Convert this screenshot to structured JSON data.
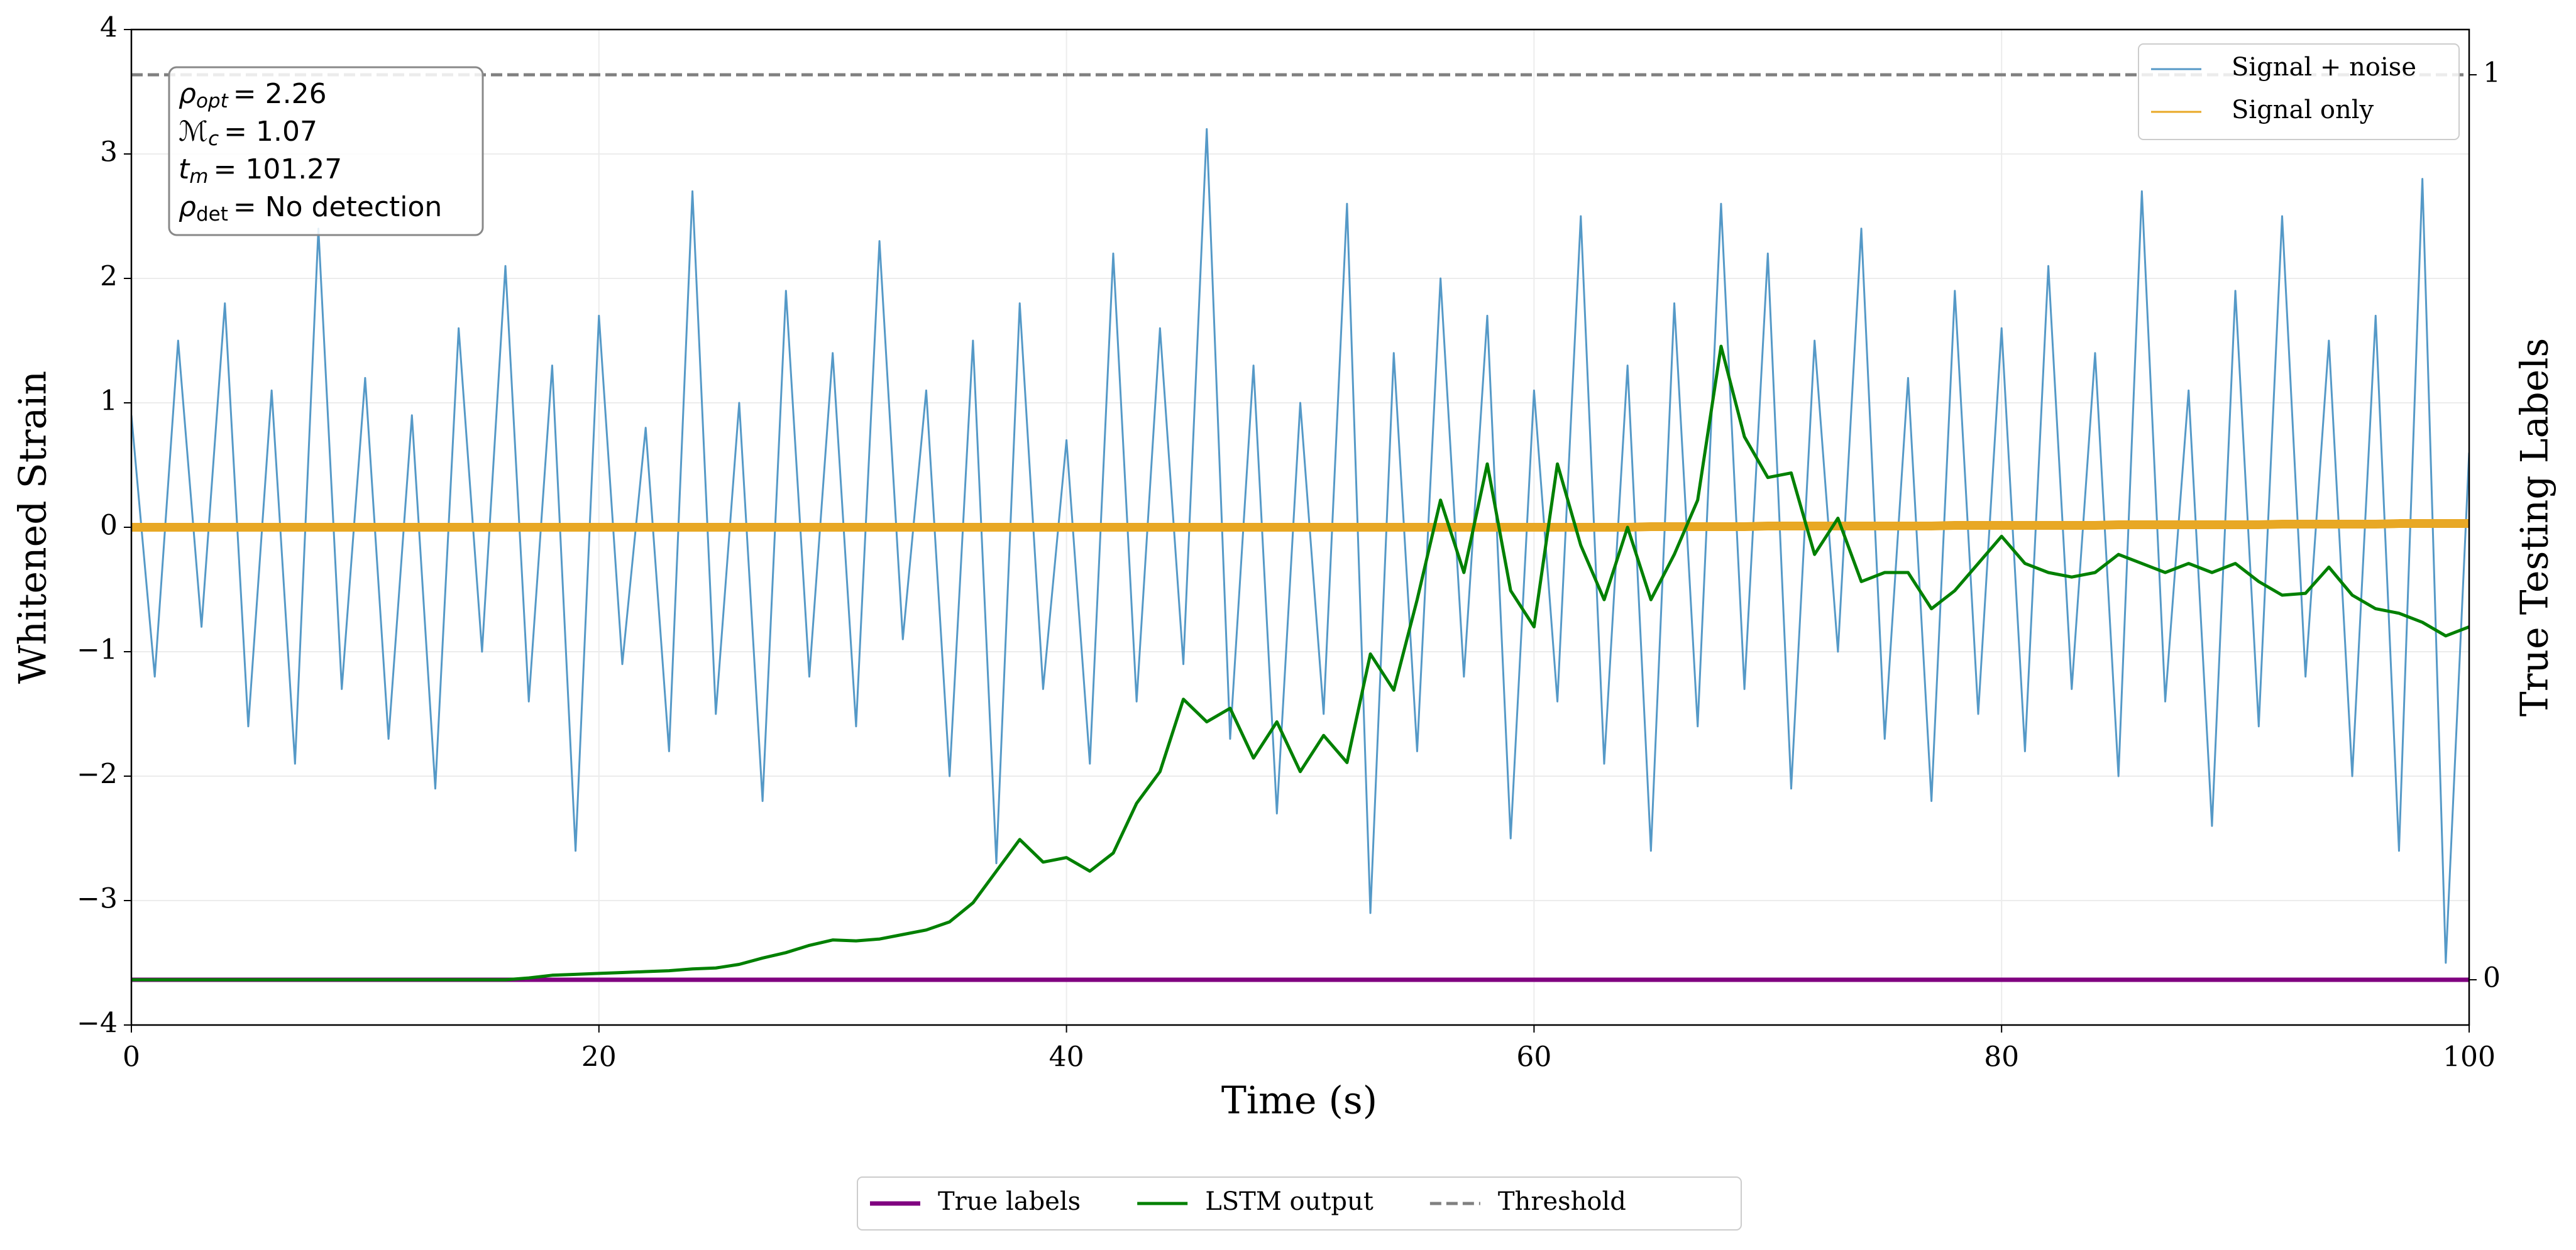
{
  "chart_data": {
    "type": "line",
    "xlabel": "Time (s)",
    "ylabel": "Whitened Strain",
    "y2label": "True Testing Labels",
    "xlim": [
      0,
      100
    ],
    "xticks": [
      0,
      20,
      40,
      60,
      80,
      100
    ],
    "ylim": [
      -4,
      4
    ],
    "yticks": [
      -4,
      -3,
      -2,
      -1,
      0,
      1,
      2,
      3,
      4
    ],
    "y2lim": [
      -0.05,
      1.05
    ],
    "y2ticks": [
      0,
      1
    ],
    "grid": true,
    "annotation": [
      {
        "symbol": "ρ",
        "sub": "opt",
        "text": "= 2.26"
      },
      {
        "symbol": "ℳ",
        "sub": "c",
        "text": "= 1.07"
      },
      {
        "symbol": "t",
        "sub": "m",
        "text": "= 101.27"
      },
      {
        "symbol": "ρ",
        "sub": "det",
        "text": "= No detection"
      }
    ],
    "x": [
      0,
      1,
      2,
      3,
      4,
      5,
      6,
      7,
      8,
      9,
      10,
      11,
      12,
      13,
      14,
      15,
      16,
      17,
      18,
      19,
      20,
      21,
      22,
      23,
      24,
      25,
      26,
      27,
      28,
      29,
      30,
      31,
      32,
      33,
      34,
      35,
      36,
      37,
      38,
      39,
      40,
      41,
      42,
      43,
      44,
      45,
      46,
      47,
      48,
      49,
      50,
      51,
      52,
      53,
      54,
      55,
      56,
      57,
      58,
      59,
      60,
      61,
      62,
      63,
      64,
      65,
      66,
      67,
      68,
      69,
      70,
      71,
      72,
      73,
      74,
      75,
      76,
      77,
      78,
      79,
      80,
      81,
      82,
      83,
      84,
      85,
      86,
      87,
      88,
      89,
      90,
      91,
      92,
      93,
      94,
      95,
      96,
      97,
      98,
      99,
      100
    ],
    "series": [
      {
        "name": "Signal + noise",
        "color": "#5599c7",
        "axis": "y",
        "legend": "upper right",
        "values": [
          0.9,
          -1.2,
          1.5,
          -0.8,
          1.8,
          -1.6,
          1.1,
          -1.9,
          2.4,
          -1.3,
          1.2,
          -1.7,
          0.9,
          -2.1,
          1.6,
          -1.0,
          2.1,
          -1.4,
          1.3,
          -2.6,
          1.7,
          -1.1,
          0.8,
          -1.8,
          2.7,
          -1.5,
          1.0,
          -2.2,
          1.9,
          -1.2,
          1.4,
          -1.6,
          2.3,
          -0.9,
          1.1,
          -2.0,
          1.5,
          -2.7,
          1.8,
          -1.3,
          0.7,
          -1.9,
          2.2,
          -1.4,
          1.6,
          -1.1,
          3.2,
          -1.7,
          1.3,
          -2.3,
          1.0,
          -1.5,
          2.6,
          -3.1,
          1.4,
          -1.8,
          2.0,
          -1.2,
          1.7,
          -2.5,
          1.1,
          -1.4,
          2.5,
          -1.9,
          1.3,
          -2.6,
          1.8,
          -1.6,
          2.6,
          -1.3,
          2.2,
          -2.1,
          1.5,
          -1.0,
          2.4,
          -1.7,
          1.2,
          -2.2,
          1.9,
          -1.5,
          1.6,
          -1.8,
          2.1,
          -1.3,
          1.4,
          -2.0,
          2.7,
          -1.4,
          1.1,
          -2.4,
          1.9,
          -1.6,
          2.5,
          -1.2,
          1.5,
          -2.0,
          1.7,
          -2.6,
          2.8,
          -3.5,
          0.6
        ]
      },
      {
        "name": "Signal only",
        "color": "#e8a825",
        "axis": "y",
        "legend": "upper right",
        "values": [
          0,
          0,
          0,
          0,
          0,
          0,
          0,
          0,
          0,
          0,
          0,
          0,
          0,
          0,
          0,
          0,
          0,
          0,
          0,
          0,
          0,
          0,
          0,
          0,
          0,
          0,
          0,
          0,
          0,
          0,
          0,
          0,
          0,
          0,
          0,
          0,
          0,
          0,
          0,
          0,
          0,
          0,
          0,
          0,
          0,
          0,
          0,
          0,
          0,
          0,
          0,
          0,
          0,
          0,
          0,
          0,
          0,
          0,
          0,
          0,
          0,
          0,
          0,
          0,
          0,
          0.005,
          0.005,
          0.005,
          0.005,
          0.005,
          0.01,
          0.01,
          0.01,
          0.01,
          0.01,
          0.01,
          0.01,
          0.01,
          0.015,
          0.015,
          0.015,
          0.015,
          0.015,
          0.015,
          0.015,
          0.02,
          0.02,
          0.02,
          0.02,
          0.02,
          0.02,
          0.02,
          0.025,
          0.025,
          0.025,
          0.025,
          0.025,
          0.03,
          0.03,
          0.03,
          0.03
        ]
      },
      {
        "name": "True labels",
        "color": "#800080",
        "axis": "y2",
        "legend": "lower center",
        "values": [
          0,
          0,
          0,
          0,
          0,
          0,
          0,
          0,
          0,
          0,
          0,
          0,
          0,
          0,
          0,
          0,
          0,
          0,
          0,
          0,
          0,
          0,
          0,
          0,
          0,
          0,
          0,
          0,
          0,
          0,
          0,
          0,
          0,
          0,
          0,
          0,
          0,
          0,
          0,
          0,
          0,
          0,
          0,
          0,
          0,
          0,
          0,
          0,
          0,
          0,
          0,
          0,
          0,
          0,
          0,
          0,
          0,
          0,
          0,
          0,
          0,
          0,
          0,
          0,
          0,
          0,
          0,
          0,
          0,
          0,
          0,
          0,
          0,
          0,
          0,
          0,
          0,
          0,
          0,
          0,
          0,
          0,
          0,
          0,
          0,
          0,
          0,
          0,
          0,
          0,
          0,
          0,
          0,
          0,
          0,
          0,
          0,
          0,
          0,
          0,
          0
        ]
      },
      {
        "name": "LSTM output",
        "color": "#008000",
        "axis": "y2",
        "legend": "lower center",
        "values": [
          0,
          0,
          0,
          0,
          0,
          0,
          0,
          0,
          0,
          0,
          0,
          0,
          0,
          0,
          0,
          0,
          0,
          0.002,
          0.005,
          0.006,
          0.007,
          0.008,
          0.009,
          0.01,
          0.012,
          0.013,
          0.017,
          0.024,
          0.03,
          0.038,
          0.044,
          0.043,
          0.045,
          0.05,
          0.055,
          0.064,
          0.085,
          0.12,
          0.155,
          0.13,
          0.135,
          0.12,
          0.14,
          0.195,
          0.23,
          0.31,
          0.285,
          0.3,
          0.245,
          0.285,
          0.23,
          0.27,
          0.24,
          0.36,
          0.32,
          0.42,
          0.53,
          0.45,
          0.57,
          0.43,
          0.39,
          0.57,
          0.48,
          0.42,
          0.5,
          0.42,
          0.47,
          0.53,
          0.7,
          0.6,
          0.555,
          0.56,
          0.47,
          0.51,
          0.44,
          0.45,
          0.45,
          0.41,
          0.43,
          0.46,
          0.49,
          0.46,
          0.45,
          0.445,
          0.45,
          0.47,
          0.46,
          0.45,
          0.46,
          0.45,
          0.46,
          0.44,
          0.425,
          0.427,
          0.456,
          0.425,
          0.41,
          0.405,
          0.395,
          0.38,
          0.39
        ]
      }
    ],
    "threshold": {
      "name": "Threshold",
      "value": 1,
      "color": "#808080",
      "axis": "y2",
      "legend": "lower center"
    }
  }
}
